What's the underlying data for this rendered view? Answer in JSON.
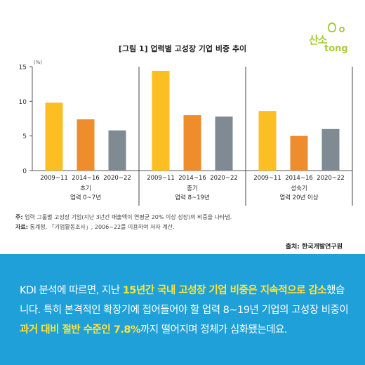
{
  "chart_data": {
    "type": "bar",
    "title": "[그림 1] 업력별 고성장 기업 비중 추이",
    "ylabel": "(%)",
    "ylim": [
      0,
      15
    ],
    "yticks": [
      0,
      5,
      10,
      15
    ],
    "groups": [
      {
        "label": "초기",
        "sublabel": "업력 0~7년"
      },
      {
        "label": "중기",
        "sublabel": "업력 8~19년"
      },
      {
        "label": "성숙기",
        "sublabel": "업력 20년 이상"
      }
    ],
    "period_labels": [
      "2009~11",
      "2014~16",
      "2020~22"
    ],
    "period_colors": [
      "#fbbf24",
      "#ef8c2c",
      "#7f8a92"
    ],
    "values": [
      [
        9.8,
        7.4,
        5.8
      ],
      [
        14.4,
        8.0,
        7.8
      ],
      [
        8.6,
        5.0,
        6.0
      ]
    ],
    "grid": false
  },
  "logo": {
    "line1": "산소",
    "line2": "tong"
  },
  "notes": {
    "note_prefix": "주:",
    "note_text": "업력 그룹별 고성장 기업(지난 3년간 매출액이 연평균 20% 이상 성장)의 비중을 나타냄.",
    "source_prefix": "자료:",
    "source_text": "통계청, 「기업활동조사」, 2006~22를 이용하여 저자 계산."
  },
  "attribution": "출처: 한국개발연구원",
  "body": {
    "p1": "KDI 분석에 따르면, 지난 ",
    "h1": "15년간 국내 고성장 기업 비중은 지속적으로 감소",
    "p2": "했습니다. 특히 본격적인 확장기에 접어들어야 할 업력 8~19년 기업의 고성장 비중이 ",
    "h2": "과거 대비 절반 수준인 7.8%",
    "p3": "까지 떨어지며 정체가 심화됐는데요."
  }
}
